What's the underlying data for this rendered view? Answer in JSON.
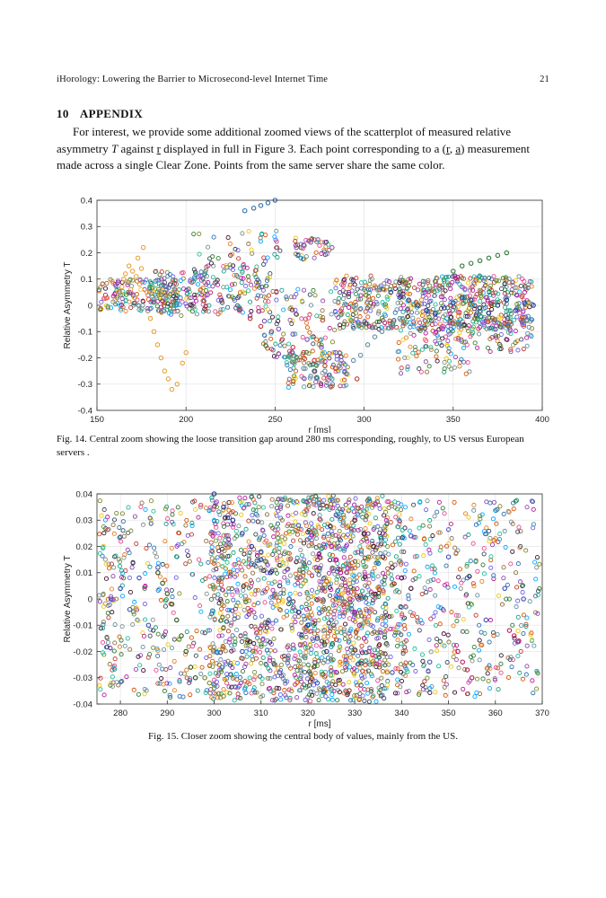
{
  "header": {
    "running_title": "iHorology:  Lowering the Barrier to Microsecond-level Internet Time",
    "page_number": "21"
  },
  "section": {
    "number": "10",
    "title": "APPENDIX"
  },
  "body": {
    "line1": "For interest, we provide some additional zoomed views of the scatterplot of measured relative",
    "line2_pre": "asymmetry ",
    "line2_T": "T",
    "line2_mid": " against ",
    "line2_r": "r",
    "line2_post": " displayed in full in Figure 3. Each point corresponding to a (",
    "line2_r2": "r",
    "line2_comma": ", ",
    "line2_a": "a",
    "line2_end": ") measurement",
    "line3": "made across a single Clear Zone. Points from the same server share the same color."
  },
  "figure14": {
    "caption": "Fig. 14.  Central zoom showing the loose transition gap around 280 ms corresponding, roughly, to US versus European servers ."
  },
  "figure15": {
    "caption": "Fig. 15.  Closer zoom showing the central body of values, mainly from the US."
  },
  "chart_data": [
    {
      "type": "scatter",
      "title": "",
      "xlabel": "r [ms]",
      "ylabel": "Relative Asymmetry T",
      "xlim": [
        150,
        400
      ],
      "ylim": [
        -0.4,
        0.4
      ],
      "xticks": [
        "150",
        "200",
        "250",
        "300",
        "350",
        "400"
      ],
      "yticks": [
        "0.4",
        "0.3",
        "0.2",
        "0.1",
        "0",
        "-0.1",
        "-0.2",
        "-0.3",
        "-0.4"
      ],
      "grid": true,
      "marker": "open circle",
      "series": [
        {
          "color": "#e8a23c",
          "points": [
            [
              160,
              0.02
            ],
            [
              162,
              0.05
            ],
            [
              164,
              0.07
            ],
            [
              165,
              0.1
            ],
            [
              166,
              0.12
            ],
            [
              167,
              0.09
            ],
            [
              168,
              0.15
            ],
            [
              169,
              0.06
            ],
            [
              170,
              0.13
            ],
            [
              171,
              0.03
            ],
            [
              172,
              0.11
            ],
            [
              173,
              0.18
            ],
            [
              174,
              0.08
            ],
            [
              175,
              0.14
            ],
            [
              176,
              0.22
            ],
            [
              178,
              0.05
            ],
            [
              180,
              -0.05
            ],
            [
              182,
              -0.1
            ],
            [
              184,
              -0.15
            ],
            [
              186,
              -0.2
            ],
            [
              188,
              -0.25
            ],
            [
              190,
              -0.28
            ],
            [
              192,
              -0.32
            ],
            [
              195,
              -0.3
            ],
            [
              198,
              -0.22
            ],
            [
              200,
              -0.18
            ]
          ]
        },
        {
          "color": "#2b6fb3",
          "points": [
            [
              233,
              0.36
            ],
            [
              238,
              0.37
            ],
            [
              242,
              0.38
            ],
            [
              246,
              0.39
            ],
            [
              250,
              0.4
            ]
          ]
        },
        {
          "color": "#c0392b",
          "points": [
            [
              230,
              -0.02
            ],
            [
              236,
              -0.05
            ],
            [
              242,
              -0.08
            ],
            [
              248,
              -0.1
            ],
            [
              254,
              -0.13
            ],
            [
              260,
              -0.16
            ],
            [
              266,
              -0.18
            ],
            [
              272,
              -0.21
            ],
            [
              278,
              -0.23
            ],
            [
              284,
              -0.24
            ],
            [
              290,
              -0.26
            ],
            [
              296,
              -0.28
            ]
          ]
        },
        {
          "color": "#7a4fbf",
          "points": [
            [
              212,
              0.04
            ],
            [
              220,
              0.02
            ],
            [
              228,
              -0.01
            ],
            [
              236,
              -0.04
            ],
            [
              244,
              -0.06
            ],
            [
              252,
              -0.09
            ],
            [
              260,
              -0.11
            ],
            [
              268,
              -0.13
            ],
            [
              276,
              -0.16
            ],
            [
              284,
              -0.18
            ]
          ]
        },
        {
          "color": "#5f8fa0",
          "points": [
            [
              262,
              -0.2
            ],
            [
              266,
              -0.24
            ],
            [
              270,
              -0.27
            ],
            [
              274,
              -0.22
            ],
            [
              278,
              -0.25
            ],
            [
              282,
              -0.28
            ],
            [
              286,
              -0.23
            ],
            [
              290,
              -0.26
            ],
            [
              294,
              -0.21
            ],
            [
              298,
              -0.19
            ],
            [
              302,
              -0.15
            ],
            [
              306,
              -0.12
            ],
            [
              310,
              -0.1
            ],
            [
              315,
              -0.08
            ],
            [
              320,
              -0.05
            ]
          ]
        },
        {
          "color": "#8c5aa8",
          "points": [
            [
              262,
              0.22
            ],
            [
              266,
              0.23
            ],
            [
              270,
              0.24
            ],
            [
              274,
              0.25
            ],
            [
              278,
              0.24
            ],
            [
              282,
              0.22
            ]
          ]
        },
        {
          "color": "#2e7d32",
          "points": [
            [
              350,
              0.13
            ],
            [
              355,
              0.15
            ],
            [
              360,
              0.16
            ],
            [
              365,
              0.17
            ],
            [
              370,
              0.18
            ],
            [
              375,
              0.19
            ],
            [
              380,
              0.2
            ]
          ]
        },
        {
          "color": "#1f3a93",
          "points": [
            [
              315,
              0.05
            ],
            [
              320,
              0.03
            ],
            [
              325,
              0.02
            ],
            [
              330,
              0.0
            ],
            [
              335,
              -0.02
            ],
            [
              340,
              -0.03
            ],
            [
              345,
              -0.01
            ],
            [
              350,
              0.01
            ],
            [
              355,
              0.03
            ],
            [
              360,
              0.02
            ],
            [
              365,
              -0.01
            ],
            [
              370,
              -0.03
            ],
            [
              375,
              0.0
            ],
            [
              380,
              0.02
            ],
            [
              385,
              -0.02
            ],
            [
              390,
              0.01
            ],
            [
              395,
              0.0
            ]
          ]
        }
      ]
    },
    {
      "type": "scatter",
      "title": "",
      "xlabel": "r [ms]",
      "ylabel": "Relative Asymmetry T",
      "xlim": [
        275,
        370
      ],
      "ylim": [
        -0.04,
        0.04
      ],
      "xticks": [
        "280",
        "290",
        "300",
        "310",
        "320",
        "330",
        "340",
        "350",
        "360",
        "370"
      ],
      "yticks": [
        "0.04",
        "0.03",
        "0.02",
        "0.01",
        "0",
        "-0.01",
        "-0.02",
        "-0.03",
        "-0.04"
      ],
      "grid": true,
      "marker": "open circle",
      "series": [
        {
          "color": "#2e4f1b",
          "points": [
            [
              288,
              0.01
            ],
            [
              289,
              0.006
            ],
            [
              290,
              0.002
            ],
            [
              291,
              -0.002
            ],
            [
              292,
              -0.008
            ],
            [
              293,
              -0.014
            ],
            [
              294,
              -0.02
            ],
            [
              295,
              -0.026
            ],
            [
              296,
              -0.03
            ]
          ]
        },
        {
          "color": "#1f3a93",
          "points": [
            [
              300,
              0.04
            ],
            [
              302,
              0.035
            ],
            [
              304,
              0.03
            ],
            [
              306,
              0.025
            ],
            [
              308,
              0.02
            ],
            [
              310,
              0.015
            ],
            [
              312,
              0.01
            ],
            [
              314,
              0.005
            ],
            [
              316,
              0.0
            ],
            [
              318,
              -0.005
            ],
            [
              320,
              -0.01
            ],
            [
              322,
              -0.015
            ],
            [
              324,
              -0.02
            ]
          ]
        },
        {
          "color": "#b5179e",
          "points": [
            [
              325,
              0.02
            ],
            [
              326,
              0.015
            ],
            [
              327,
              0.01
            ],
            [
              328,
              0.005
            ],
            [
              329,
              0.0
            ],
            [
              330,
              -0.005
            ],
            [
              331,
              -0.01
            ],
            [
              332,
              -0.015
            ],
            [
              333,
              -0.02
            ]
          ]
        },
        {
          "color": "#3b0f2e",
          "points": [
            [
              330,
              0.03
            ],
            [
              332,
              0.025
            ],
            [
              334,
              0.02
            ],
            [
              336,
              0.016
            ],
            [
              338,
              0.012
            ],
            [
              340,
              0.008
            ],
            [
              342,
              0.004
            ]
          ]
        },
        {
          "color": "#c2185b",
          "points": [
            [
              352,
              -0.02
            ],
            [
              353,
              -0.024
            ],
            [
              354,
              -0.027
            ],
            [
              355,
              -0.03
            ],
            [
              363,
              -0.012
            ],
            [
              364,
              -0.014
            ],
            [
              365,
              -0.016
            ]
          ]
        },
        {
          "color": "#7a8a2a",
          "points": [
            [
              298,
              -0.03
            ],
            [
              299,
              -0.032
            ],
            [
              300,
              -0.034
            ],
            [
              301,
              -0.036
            ],
            [
              302,
              -0.037
            ]
          ]
        },
        {
          "color": "#3f51b5",
          "points": [
            [
              278,
              0.0
            ],
            [
              280,
              0.004
            ],
            [
              282,
              -0.004
            ],
            [
              284,
              0.008
            ],
            [
              286,
              -0.01
            ],
            [
              288,
              0.012
            ],
            [
              306,
              -0.02
            ],
            [
              310,
              0.018
            ],
            [
              314,
              -0.028
            ],
            [
              318,
              0.028
            ],
            [
              322,
              -0.032
            ],
            [
              326,
              0.032
            ],
            [
              338,
              -0.028
            ],
            [
              342,
              0.024
            ],
            [
              346,
              -0.024
            ],
            [
              350,
              0.016
            ],
            [
              354,
              0.008
            ],
            [
              358,
              -0.008
            ],
            [
              362,
              0.004
            ],
            [
              366,
              0.0
            ]
          ]
        }
      ]
    }
  ]
}
